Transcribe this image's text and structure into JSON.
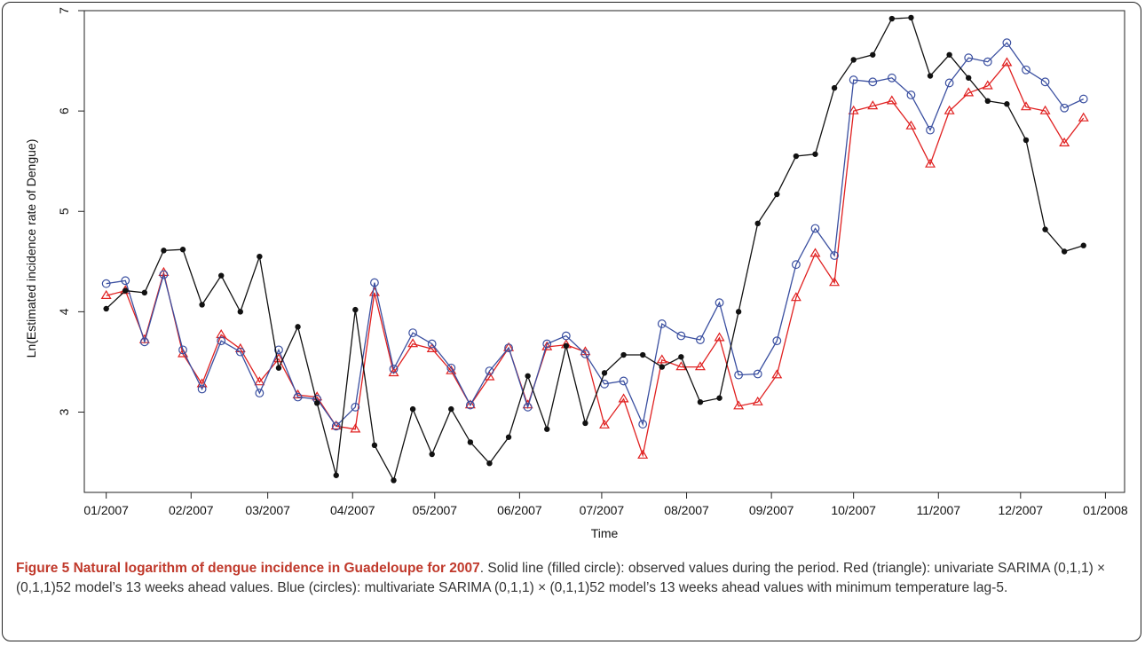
{
  "figure": {
    "caption_title": "Figure 5 Natural logarithm of dengue incidence in Guadeloupe for 2007",
    "caption_text": ". Solid line (filled circle): observed values during the period. Red (triangle): univariate SARIMA (0,1,1) × (0,1,1)52 model’s 13 weeks ahead values. Blue (circles): multivariate SARIMA (0,1,1) × (0,1,1)52 model’s 13 weeks ahead values with minimum temperature lag-5."
  },
  "chart_data": {
    "type": "line",
    "title": "",
    "xlabel": "Time",
    "ylabel": "Ln(Estimated incidence rate of Dengue)",
    "x_tick_labels": [
      "01/2007",
      "02/2007",
      "03/2007",
      "04/2007",
      "05/2007",
      "06/2007",
      "07/2007",
      "08/2007",
      "09/2007",
      "10/2007",
      "11/2007",
      "12/2007",
      "01/2008"
    ],
    "y_ticks": [
      3,
      4,
      5,
      6,
      7
    ],
    "xlim": [
      "2006-12-24",
      "2008-01-08"
    ],
    "ylim": [
      2.2,
      7.0
    ],
    "grid": false,
    "x_dates": [
      "2007-01-01",
      "2007-01-08",
      "2007-01-15",
      "2007-01-22",
      "2007-01-29",
      "2007-02-05",
      "2007-02-12",
      "2007-02-19",
      "2007-02-26",
      "2007-03-05",
      "2007-03-12",
      "2007-03-19",
      "2007-03-26",
      "2007-04-02",
      "2007-04-09",
      "2007-04-16",
      "2007-04-23",
      "2007-04-30",
      "2007-05-07",
      "2007-05-14",
      "2007-05-21",
      "2007-05-28",
      "2007-06-04",
      "2007-06-11",
      "2007-06-18",
      "2007-06-25",
      "2007-07-02",
      "2007-07-09",
      "2007-07-16",
      "2007-07-23",
      "2007-07-30",
      "2007-08-06",
      "2007-08-13",
      "2007-08-20",
      "2007-08-27",
      "2007-09-03",
      "2007-09-10",
      "2007-09-17",
      "2007-09-24",
      "2007-10-01",
      "2007-10-08",
      "2007-10-15",
      "2007-10-22",
      "2007-10-29",
      "2007-11-05",
      "2007-11-12",
      "2007-11-19",
      "2007-11-26",
      "2007-12-03",
      "2007-12-10",
      "2007-12-17",
      "2007-12-24"
    ],
    "series": [
      {
        "name": "Observed",
        "style": "black-filled-circle",
        "color": "#111111",
        "values": [
          4.03,
          4.21,
          4.19,
          4.61,
          4.62,
          4.07,
          4.36,
          4.0,
          4.55,
          3.44,
          3.85,
          3.09,
          2.37,
          4.02,
          2.67,
          2.32,
          3.03,
          2.58,
          3.03,
          2.7,
          2.49,
          2.75,
          3.36,
          2.83,
          3.66,
          2.89,
          3.39,
          3.57,
          3.57,
          3.45,
          3.55,
          3.1,
          3.14,
          4.0,
          4.88,
          5.17,
          5.55,
          5.57,
          6.23,
          6.51,
          6.56,
          6.92,
          6.93,
          6.35,
          6.56,
          6.33,
          6.1,
          6.07,
          5.71,
          4.82,
          4.6,
          4.66
        ]
      },
      {
        "name": "Multivariate SARIMA",
        "style": "blue-open-circle",
        "color": "#3a4fa0",
        "values": [
          4.28,
          4.31,
          3.7,
          4.37,
          3.62,
          3.23,
          3.71,
          3.6,
          3.19,
          3.62,
          3.15,
          3.13,
          2.86,
          3.05,
          4.29,
          3.43,
          3.79,
          3.68,
          3.44,
          3.07,
          3.41,
          3.64,
          3.05,
          3.68,
          3.76,
          3.58,
          3.28,
          3.31,
          2.88,
          3.88,
          3.76,
          3.72,
          4.09,
          3.37,
          3.38,
          3.71,
          4.47,
          4.83,
          4.56,
          6.31,
          6.29,
          6.33,
          6.16,
          5.81,
          6.28,
          6.53,
          6.49,
          6.68,
          6.41,
          6.29,
          6.03,
          6.12
        ]
      },
      {
        "name": "Univariate SARIMA",
        "style": "red-open-triangle",
        "color": "#e02020",
        "values": [
          4.16,
          4.21,
          3.72,
          4.39,
          3.58,
          3.28,
          3.77,
          3.63,
          3.3,
          3.53,
          3.17,
          3.15,
          2.86,
          2.83,
          4.19,
          3.39,
          3.68,
          3.63,
          3.41,
          3.07,
          3.35,
          3.64,
          3.07,
          3.65,
          3.67,
          3.6,
          2.87,
          3.13,
          2.57,
          3.52,
          3.45,
          3.45,
          3.74,
          3.06,
          3.1,
          3.37,
          4.14,
          4.58,
          4.29,
          6.0,
          6.05,
          6.1,
          5.85,
          5.47,
          6.0,
          6.18,
          6.25,
          6.48,
          6.04,
          6.0,
          5.68,
          5.93
        ]
      }
    ]
  }
}
